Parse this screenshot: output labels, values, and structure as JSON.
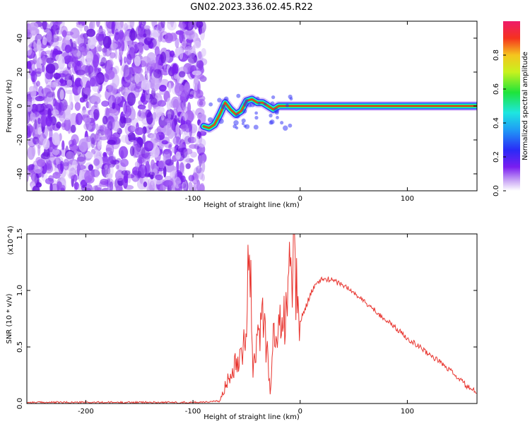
{
  "figure_title": "GN02.2023.336.02.45.R22",
  "chart_data": [
    {
      "type": "heatmap",
      "title": "GN02.2023.336.02.45.R22",
      "xlabel": "Height of straight line (km)",
      "ylabel": "Frequency (Hz)",
      "xlim": [
        -255,
        165
      ],
      "ylim": [
        -50,
        50
      ],
      "xticks": [
        -200,
        -100,
        0,
        100
      ],
      "yticks": [
        -40,
        -20,
        0,
        20,
        40
      ],
      "colorbar": {
        "label": "Normalized spectral amplitude",
        "range": [
          0,
          1
        ],
        "ticks": [
          0.0,
          0.2,
          0.4,
          0.6,
          0.8
        ],
        "colormap": "rainbow (white-purple-blue-cyan-green-yellow-red-magenta)"
      },
      "noise_region": {
        "x": [
          -255,
          -90
        ],
        "y": [
          -50,
          50
        ],
        "amplitude": "low (0.0-0.15)"
      },
      "signal_track": [
        {
          "x": -90,
          "y": -12
        },
        {
          "x": -85,
          "y": -13
        },
        {
          "x": -80,
          "y": -11
        },
        {
          "x": -75,
          "y": -5
        },
        {
          "x": -70,
          "y": 2
        },
        {
          "x": -65,
          "y": -2
        },
        {
          "x": -60,
          "y": -5
        },
        {
          "x": -55,
          "y": -3
        },
        {
          "x": -50,
          "y": 3
        },
        {
          "x": -45,
          "y": 4
        },
        {
          "x": -40,
          "y": 2
        },
        {
          "x": -35,
          "y": 2
        },
        {
          "x": -30,
          "y": 0
        },
        {
          "x": -25,
          "y": -2
        },
        {
          "x": -20,
          "y": 0
        },
        {
          "x": -10,
          "y": 0
        },
        {
          "x": 0,
          "y": 0
        },
        {
          "x": 165,
          "y": 0
        }
      ],
      "signal_peak_amplitude": 0.95,
      "grid": false
    },
    {
      "type": "line",
      "xlabel": "Height of straight line (km)",
      "ylabel": "SNR (10 * v/v)",
      "y_scale_label": "(x10^4)",
      "xlim": [
        -255,
        165
      ],
      "ylim": [
        0,
        1.5
      ],
      "xticks": [
        -200,
        -100,
        0,
        100
      ],
      "yticks": [
        0.0,
        0.5,
        1.0,
        1.5
      ],
      "color": "#e8352f",
      "series": [
        {
          "x": [
            -255,
            -200,
            -150,
            -100,
            -75,
            -70,
            -65,
            -60,
            -55,
            -50,
            -48,
            -46,
            -44,
            -40,
            -35,
            -30,
            -28,
            -25,
            -20,
            -15,
            -12,
            -10,
            -8,
            -6,
            -4,
            0,
            5,
            10,
            15,
            20,
            25,
            30,
            40,
            50,
            60,
            70,
            80,
            90,
            100,
            110,
            120,
            130,
            140,
            150,
            160,
            165
          ],
          "y": [
            0.01,
            0.01,
            0.01,
            0.01,
            0.02,
            0.15,
            0.28,
            0.38,
            0.45,
            0.72,
            1.43,
            0.95,
            0.3,
            0.5,
            0.82,
            0.4,
            0.1,
            0.55,
            0.65,
            0.75,
            0.95,
            1.35,
            0.9,
            1.5,
            1.0,
            0.72,
            0.85,
            0.98,
            1.05,
            1.1,
            1.1,
            1.09,
            1.05,
            0.98,
            0.9,
            0.82,
            0.74,
            0.66,
            0.58,
            0.51,
            0.44,
            0.37,
            0.29,
            0.2,
            0.12,
            0.1
          ]
        }
      ],
      "grid": false
    }
  ]
}
